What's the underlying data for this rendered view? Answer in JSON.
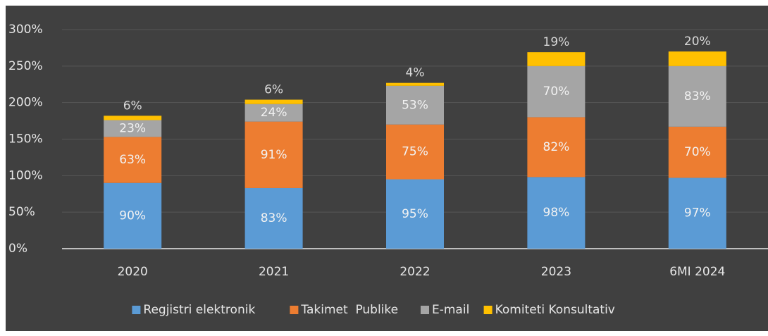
{
  "chart_data": {
    "type": "stacked_bar",
    "categories": [
      "2020",
      "2021",
      "2022",
      "2023",
      "6MI 2024"
    ],
    "series": [
      {
        "name": "Regjistri elektronik",
        "color": "#5b9bd5",
        "values": [
          90,
          83,
          95,
          98,
          97
        ],
        "value_labels": [
          "90%",
          "83%",
          "95%",
          "98%",
          "97%"
        ]
      },
      {
        "name": "Takimet  Publike",
        "color": "#ed7d31",
        "values": [
          63,
          91,
          75,
          82,
          70
        ],
        "value_labels": [
          "63%",
          "91%",
          "75%",
          "82%",
          "70%"
        ]
      },
      {
        "name": "E-mail",
        "color": "#a5a5a5",
        "values": [
          23,
          24,
          53,
          70,
          83
        ],
        "value_labels": [
          "23%",
          "24%",
          "53%",
          "70%",
          "83%"
        ]
      },
      {
        "name": "Komiteti Konsultativ",
        "color": "#ffc000",
        "values": [
          6,
          6,
          4,
          19,
          20
        ],
        "value_labels": [
          "6%",
          "6%",
          "4%",
          "19%",
          "20%"
        ]
      }
    ],
    "ylim": [
      0,
      300
    ],
    "yticks": [
      {
        "value": 0,
        "label": "0%"
      },
      {
        "value": 50,
        "label": "50%"
      },
      {
        "value": 100,
        "label": "100%"
      },
      {
        "value": 150,
        "label": "150%"
      },
      {
        "value": 200,
        "label": "200%"
      },
      {
        "value": 250,
        "label": "250%"
      },
      {
        "value": 300,
        "label": "300%"
      }
    ],
    "grid": true,
    "legend": "bottom"
  }
}
